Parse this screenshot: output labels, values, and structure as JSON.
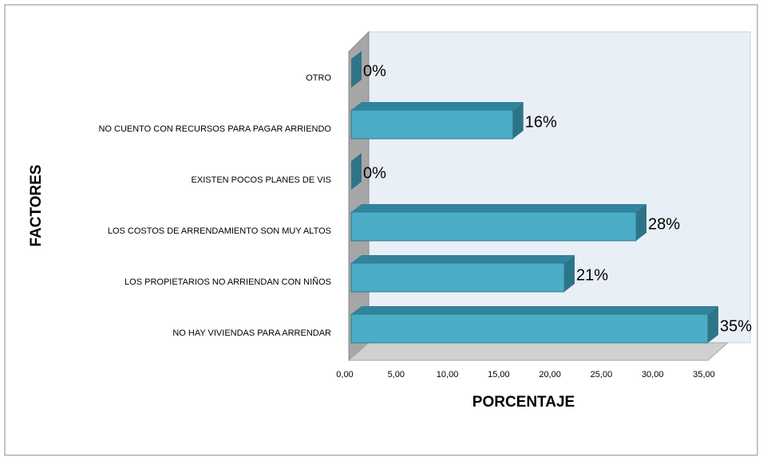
{
  "chart_data": {
    "type": "bar3d_horizontal",
    "ylabel": "FACTORES",
    "xlabel": "PORCENTAJE",
    "categories": [
      "NO HAY VIVIENDAS PARA ARRENDAR",
      "LOS PROPIETARIOS NO ARRIENDAN CON NIÑOS",
      "LOS COSTOS DE ARRENDAMIENTO SON MUY ALTOS",
      "EXISTEN POCOS PLANES DE VIS",
      "NO CUENTO CON RECURSOS PARA PAGAR ARRIENDO",
      "OTRO"
    ],
    "values": [
      35,
      21,
      28,
      0,
      16,
      0
    ],
    "value_labels": [
      "35%",
      "21%",
      "28%",
      "0%",
      "16%",
      "0%"
    ],
    "color": "#4bacc6",
    "xlim": [
      0,
      35
    ],
    "xticks": [
      {
        "value": 0,
        "label": "0,00"
      },
      {
        "value": 5,
        "label": "5,00"
      },
      {
        "value": 10,
        "label": "10,00"
      },
      {
        "value": 15,
        "label": "15,00"
      },
      {
        "value": 20,
        "label": "20,00"
      },
      {
        "value": 25,
        "label": "25,00"
      },
      {
        "value": 30,
        "label": "30,00"
      },
      {
        "value": 35,
        "label": "35,00"
      }
    ]
  }
}
